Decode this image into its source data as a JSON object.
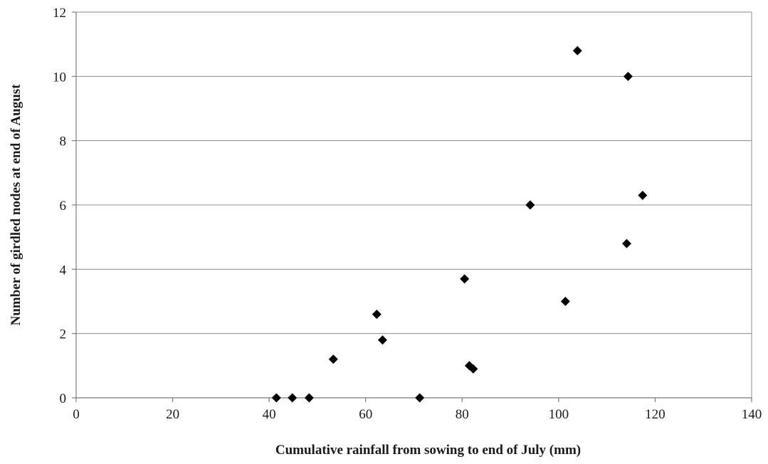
{
  "chart_data": {
    "type": "scatter",
    "title": "",
    "xlabel": "Cumulative rainfall from sowing to end of July (mm)",
    "ylabel": "Number of girdled nodes at end of August",
    "xlim": [
      0,
      140
    ],
    "ylim": [
      0,
      12
    ],
    "x_ticks": [
      0,
      20,
      40,
      60,
      80,
      100,
      120,
      140
    ],
    "y_ticks": [
      0,
      2,
      4,
      6,
      8,
      10,
      12
    ],
    "x_tick_labels": [
      "0",
      "20",
      "40",
      "60",
      "80",
      "100",
      "120",
      "140"
    ],
    "y_tick_labels": [
      "0",
      "2",
      "4",
      "6",
      "8",
      "10",
      "12"
    ],
    "grid": "horizontal",
    "legend": "none",
    "marker": "diamond",
    "marker_color": "#000000",
    "points": [
      {
        "x": 41.5,
        "y": 0
      },
      {
        "x": 44.8,
        "y": 0
      },
      {
        "x": 48.3,
        "y": 0
      },
      {
        "x": 53.3,
        "y": 1.2
      },
      {
        "x": 62.3,
        "y": 2.6
      },
      {
        "x": 63.5,
        "y": 1.8
      },
      {
        "x": 71.2,
        "y": 0
      },
      {
        "x": 80.5,
        "y": 3.7
      },
      {
        "x": 81.5,
        "y": 1.0
      },
      {
        "x": 82.3,
        "y": 0.9
      },
      {
        "x": 94.1,
        "y": 6.0
      },
      {
        "x": 101.4,
        "y": 3.0
      },
      {
        "x": 103.9,
        "y": 10.8
      },
      {
        "x": 114.1,
        "y": 4.8
      },
      {
        "x": 114.4,
        "y": 10.0
      },
      {
        "x": 117.4,
        "y": 6.3
      }
    ]
  }
}
